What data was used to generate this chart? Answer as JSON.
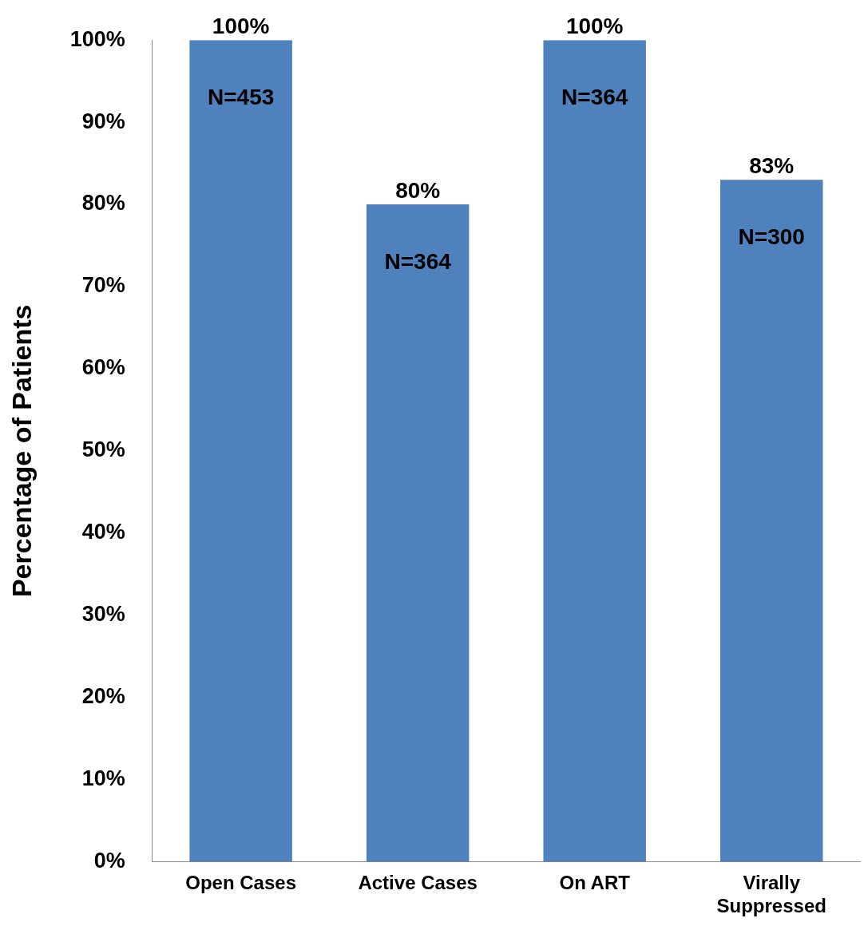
{
  "chart_data": {
    "type": "bar",
    "ylabel": "Percentage of Patients",
    "categories": [
      "Open Cases",
      "Active Cases",
      "On ART",
      "Virally Suppressed"
    ],
    "values": [
      100,
      80,
      100,
      83
    ],
    "color": "#4f81bd",
    "value_labels": [
      "100%",
      "80%",
      "100%",
      "83%"
    ],
    "annotations": [
      {
        "text": "N=453",
        "x": "Open Cases",
        "y": 100
      },
      {
        "text": "N=364",
        "x": "Active Cases",
        "y": 80
      },
      {
        "text": "N=364",
        "x": "On ART",
        "y": 100
      },
      {
        "text": "N=300",
        "x": "Virally Suppressed",
        "y": 83
      }
    ],
    "ylim": [
      0,
      100
    ],
    "yticks": [
      {
        "value": 0,
        "label": "0%"
      },
      {
        "value": 10,
        "label": "10%"
      },
      {
        "value": 20,
        "label": "20%"
      },
      {
        "value": 30,
        "label": "30%"
      },
      {
        "value": 40,
        "label": "40%"
      },
      {
        "value": 50,
        "label": "50%"
      },
      {
        "value": 60,
        "label": "60%"
      },
      {
        "value": 70,
        "label": "70%"
      },
      {
        "value": 80,
        "label": "80%"
      },
      {
        "value": 90,
        "label": "90%"
      },
      {
        "value": 100,
        "label": "100%"
      }
    ],
    "grid": false,
    "legend": false
  }
}
